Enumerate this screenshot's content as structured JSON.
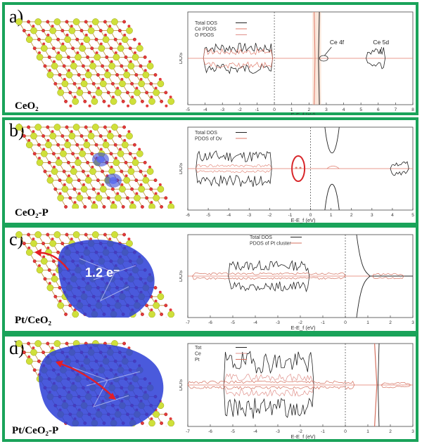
{
  "colors": {
    "border": "#1aa35a",
    "total": "#222222",
    "pdos": "#e07a6a",
    "ce": "#e0908a",
    "pt": "#d4705e",
    "fill": "#f6cdb6",
    "atomCe": "#cfe03a",
    "atomO": "#e23b3b",
    "charge": "#2a3dd6",
    "arrow": "#e41e26",
    "circle": "#d8262a"
  },
  "panels": [
    {
      "id": "a",
      "label": "a)",
      "structure": "CeO₂",
      "chart_data": {
        "type": "line",
        "xlabel": "E-E_f (eV)",
        "ylabel": "DOS",
        "xlim": [
          -5,
          8
        ],
        "xticks": [
          "-5",
          "-4",
          "-3",
          "-2",
          "-1",
          "0",
          "1",
          "2",
          "3",
          "4",
          "5",
          "6",
          "7",
          "8"
        ],
        "legend": [
          "Total DOS",
          "Ce PDOS",
          "O PDOS"
        ],
        "annotations": [
          "Ce 4f",
          "Ce 5d"
        ]
      }
    },
    {
      "id": "b",
      "label": "b)",
      "structure": "CeO₂-P",
      "chart_data": {
        "type": "line",
        "xlabel": "E-E_f (eV)",
        "ylabel": "DOS",
        "xlim": [
          -6,
          5
        ],
        "xticks": [
          "-6",
          "-5",
          "-4",
          "-3",
          "-2",
          "-1",
          "0",
          "1",
          "2",
          "3",
          "4",
          "5"
        ],
        "legend": [
          "Total DOS",
          "PDOS of Ov"
        ]
      }
    },
    {
      "id": "c",
      "label": "c)",
      "structure": "Pt/CeO₂",
      "charge": "1.2 e⁻",
      "chart_data": {
        "type": "line",
        "xlabel": "E-E_f (eV)",
        "ylabel": "DOS",
        "xlim": [
          -7,
          3
        ],
        "xticks": [
          "-7",
          "-6",
          "-5",
          "-4",
          "-3",
          "-2",
          "-1",
          "0",
          "1",
          "2",
          "3"
        ],
        "legend": [
          "Total DOS",
          "PDOS of Pt cluster"
        ]
      }
    },
    {
      "id": "d",
      "label": "d)",
      "structure": "Pt/CeO₂-P",
      "chart_data": {
        "type": "line",
        "xlabel": "E-E_f (eV)",
        "ylabel": "DOS",
        "xlim": [
          -7,
          3
        ],
        "xticks": [
          "-7",
          "-6",
          "-5",
          "-4",
          "-3",
          "-2",
          "-1",
          "0",
          "1",
          "2",
          "3"
        ],
        "legend": [
          "Tot",
          "Ce",
          "Pt"
        ]
      }
    }
  ]
}
